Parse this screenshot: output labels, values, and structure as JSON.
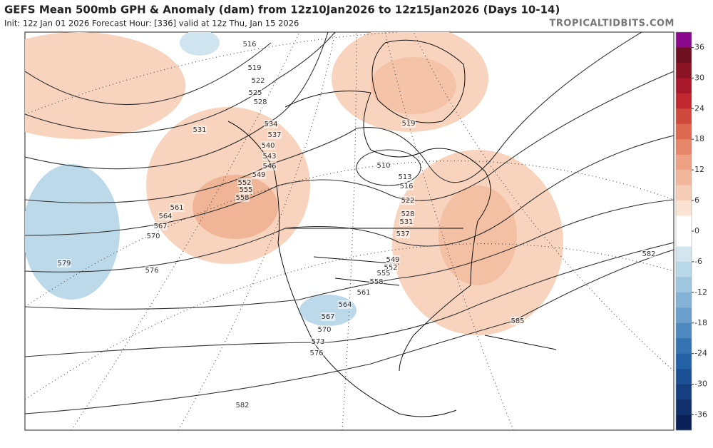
{
  "header": {
    "title": "GEFS Mean 500mb GPH & Anomaly (dam) from 12z10Jan2026 to 12z15Jan2026 (Days 10-14)",
    "subtitle": "Init: 12z Jan 01 2026   Forecast Hour: [336]   valid at 12z Thu, Jan 15 2026",
    "site": "TROPICALTIDBITS.COM"
  },
  "contour_labels": [
    516,
    519,
    522,
    525,
    528,
    531,
    534,
    537,
    540,
    543,
    546,
    549,
    552,
    555,
    558,
    561,
    564,
    567,
    570,
    576,
    579,
    582,
    510,
    513,
    516,
    519,
    522,
    528,
    531,
    537,
    549,
    552,
    555,
    558,
    561,
    564,
    567,
    570,
    573,
    576,
    585,
    582
  ],
  "colorbar": {
    "lim": [
      -39,
      39
    ],
    "ticks": [
      36,
      30,
      24,
      18,
      12,
      6,
      0,
      -6,
      -12,
      -18,
      -24,
      -30,
      -36
    ],
    "colors": [
      "#8b0a8b",
      "#6d0f1f",
      "#8a1424",
      "#a8182a",
      "#c0282e",
      "#d04a3c",
      "#dd6a50",
      "#e8866a",
      "#eea183",
      "#f2b89d",
      "#f6cdb6",
      "#fae3d3",
      "#ffffff",
      "#ffffff",
      "#d3e6f0",
      "#b8d7e8",
      "#9ec6df",
      "#84b3d5",
      "#6aa0cb",
      "#4e8abf",
      "#3574b3",
      "#2361a6",
      "#1a4f94",
      "#153f80",
      "#10306b",
      "#0b2258"
    ]
  }
}
